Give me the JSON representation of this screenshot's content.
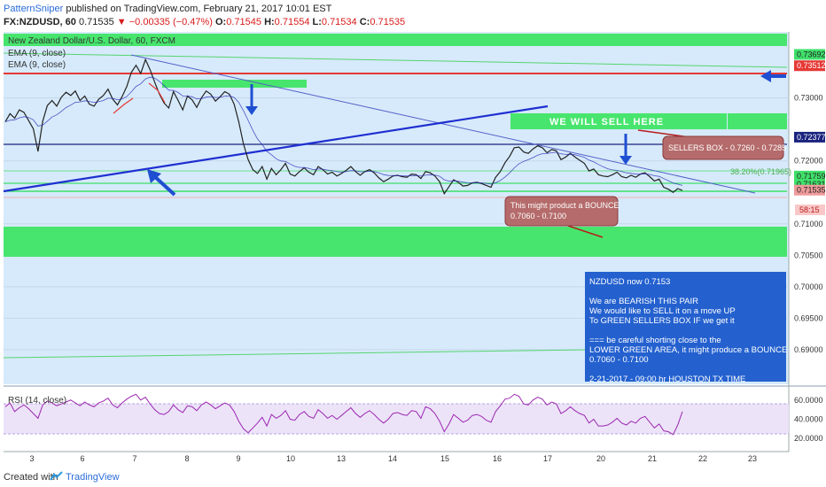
{
  "header": {
    "author": "PatternSniper",
    "published_text": " published on TradingView.com, February 21, 2017 10:01 EST",
    "symbol": "FX:NZDUSD, 60",
    "last": "0.71535",
    "change": "▼ −0.00335 (−0.47%)",
    "open_label": "O:",
    "open": "0.71545",
    "high_label": "H:",
    "high": "0.71554",
    "low_label": "L:",
    "low": "0.71534",
    "close_label": "C:",
    "close": "0.71535"
  },
  "chart_data": {
    "type": "line",
    "instrument": "New Zealand Dollar/U.S. Dollar, 60, FXCM",
    "indicators": [
      "EMA (9, close)",
      "EMA (9, close)"
    ],
    "rsi_label": "RSI (14, close)",
    "x_tick_labels": [
      "3",
      "6",
      "7",
      "8",
      "9",
      "10",
      "13",
      "14",
      "15",
      "16",
      "17",
      "20",
      "21",
      "22",
      "23"
    ],
    "ylim": [
      0.6845,
      0.7405
    ],
    "y_ticks": [
      "0.73000",
      "0.72000",
      "0.71000",
      "0.70500",
      "0.70000",
      "0.69500",
      "0.69000"
    ],
    "y_tick_values": [
      0.73,
      0.72,
      0.71,
      0.705,
      0.7,
      0.695,
      0.69
    ],
    "price_tags": [
      {
        "label": "0.73692",
        "value": 0.73692,
        "color": "#3fe06a"
      },
      {
        "label": "0.73512",
        "value": 0.73512,
        "color": "#e53935"
      },
      {
        "label": "0.72377",
        "value": 0.72377,
        "color": "#1a237e"
      },
      {
        "label": "0.71759",
        "value": 0.71759,
        "color": "#3fe06a"
      },
      {
        "label": "0.71631",
        "value": 0.71631,
        "color": "#3fe06a"
      },
      {
        "label": "0.71535",
        "value": 0.71535,
        "color": "#ef9a9a"
      }
    ],
    "countdown": "58:15",
    "fib_label": "38.20%(0.71965)",
    "price_series": [
      0.7262,
      0.7275,
      0.7268,
      0.7281,
      0.7277,
      0.7264,
      0.7251,
      0.7215,
      0.7263,
      0.7288,
      0.7296,
      0.7287,
      0.7301,
      0.7309,
      0.7304,
      0.7311,
      0.7296,
      0.7303,
      0.729,
      0.7287,
      0.7298,
      0.7304,
      0.7314,
      0.7298,
      0.7289,
      0.7302,
      0.7318,
      0.7341,
      0.7352,
      0.7339,
      0.7361,
      0.7345,
      0.7325,
      0.7306,
      0.7292,
      0.7284,
      0.731,
      0.7296,
      0.7281,
      0.7303,
      0.7297,
      0.7285,
      0.73,
      0.7311,
      0.7306,
      0.7295,
      0.7302,
      0.731,
      0.7306,
      0.729,
      0.7262,
      0.7227,
      0.7202,
      0.7186,
      0.718,
      0.7191,
      0.7171,
      0.7188,
      0.7178,
      0.7186,
      0.7196,
      0.7179,
      0.7176,
      0.7183,
      0.7189,
      0.7182,
      0.7178,
      0.7191,
      0.7186,
      0.7179,
      0.7182,
      0.7176,
      0.718,
      0.7185,
      0.7191,
      0.7183,
      0.7177,
      0.7183,
      0.7186,
      0.7181,
      0.7173,
      0.7167,
      0.7171,
      0.7176,
      0.7177,
      0.7175,
      0.7174,
      0.7179,
      0.7178,
      0.7172,
      0.7183,
      0.7181,
      0.7176,
      0.7167,
      0.7148,
      0.7159,
      0.717,
      0.7166,
      0.716,
      0.7161,
      0.7165,
      0.7166,
      0.7164,
      0.7161,
      0.7158,
      0.7174,
      0.7183,
      0.7197,
      0.7207,
      0.7221,
      0.7222,
      0.7214,
      0.7212,
      0.7219,
      0.7224,
      0.7221,
      0.7213,
      0.7218,
      0.7216,
      0.7202,
      0.7206,
      0.7212,
      0.7206,
      0.7201,
      0.7196,
      0.7184,
      0.7187,
      0.7178,
      0.7176,
      0.7175,
      0.7178,
      0.7182,
      0.7175,
      0.7173,
      0.7177,
      0.7174,
      0.7179,
      0.7181,
      0.7175,
      0.7168,
      0.7171,
      0.7158,
      0.7155,
      0.715,
      0.7156,
      0.7153
    ],
    "rsi_series": [
      53,
      57,
      48,
      52,
      55,
      51,
      46,
      41,
      55,
      59,
      57,
      54,
      56,
      58,
      60,
      57,
      54,
      58,
      55,
      53,
      57,
      59,
      62,
      55,
      52,
      57,
      61,
      64,
      66,
      60,
      63,
      56,
      50,
      46,
      45,
      48,
      55,
      50,
      47,
      54,
      53,
      49,
      55,
      58,
      55,
      51,
      54,
      57,
      55,
      48,
      38,
      30,
      26,
      31,
      36,
      42,
      33,
      45,
      41,
      44,
      49,
      40,
      39,
      45,
      48,
      43,
      41,
      50,
      46,
      41,
      44,
      40,
      44,
      48,
      52,
      46,
      42,
      46,
      49,
      45,
      40,
      36,
      40,
      46,
      47,
      45,
      44,
      49,
      48,
      41,
      53,
      51,
      46,
      38,
      27,
      35,
      45,
      41,
      37,
      39,
      44,
      45,
      43,
      39,
      37,
      48,
      54,
      61,
      62,
      66,
      64,
      56,
      55,
      60,
      63,
      61,
      55,
      58,
      56,
      46,
      49,
      53,
      49,
      46,
      44,
      36,
      40,
      33,
      33,
      34,
      37,
      41,
      36,
      34,
      38,
      36,
      41,
      43,
      37,
      31,
      35,
      28,
      27,
      24,
      34,
      48
    ],
    "rsi_ticks": [
      "60.0000",
      "40.0000",
      "20.0000"
    ],
    "annotations": {
      "sell_label": "WE WILL SELL HERE",
      "sellers_box": "SELLERS BOX - 0.7260 - 0.7285",
      "bounce_line1": "This might product a BOUNCE",
      "bounce_line2": "0.7060 - 0.7100"
    },
    "note": [
      "NZDUSD now 0.7153",
      "",
      "We are BEARISH THIS PAIR",
      "We would like to SELL it on a move UP",
      "To GREEN SELLERS BOX IF we get it",
      "",
      "=== be careful shorting close to the",
      "LOWER GREEN AREA, it might produce a BOUNCE",
      "0.7060 - 0.7100",
      "",
      "2-21-2017 - 09:00 hr HOUSTON TX TIME"
    ]
  },
  "footer": {
    "created": "Created with",
    "brand": "TradingView"
  }
}
